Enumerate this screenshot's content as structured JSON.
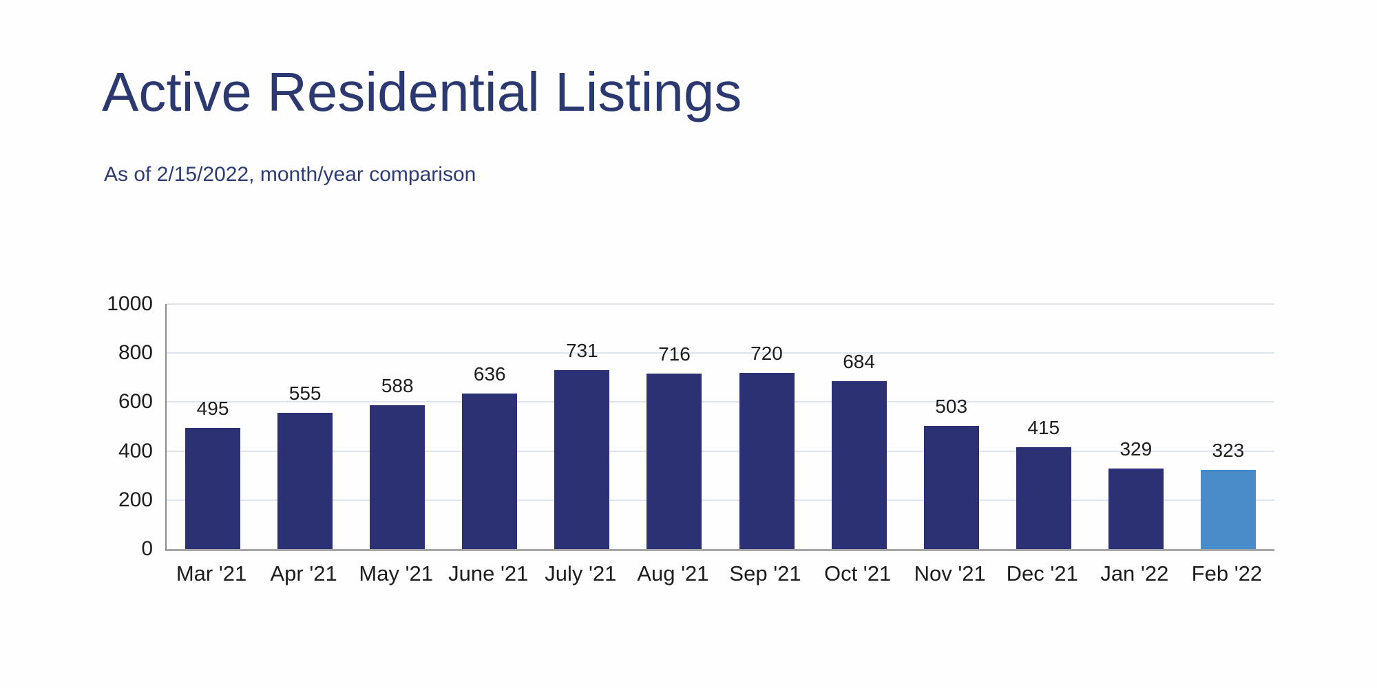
{
  "header": {
    "title": "Active Residential Listings",
    "subtitle": "As of 2/15/2022, month/year comparison"
  },
  "chart_data": {
    "type": "bar",
    "title": "Active Residential Listings",
    "subtitle": "As of 2/15/2022, month/year comparison",
    "categories": [
      "Mar '21",
      "Apr '21",
      "May '21",
      "June '21",
      "July '21",
      "Aug '21",
      "Sep '21",
      "Oct '21",
      "Nov '21",
      "Dec '21",
      "Jan '22",
      "Feb '22"
    ],
    "values": [
      495,
      555,
      588,
      636,
      731,
      716,
      720,
      684,
      503,
      415,
      329,
      323
    ],
    "data_labels_shown": true,
    "highlight_index": 11,
    "yticks": [
      0,
      200,
      400,
      600,
      800,
      1000
    ],
    "ylim": [
      0,
      1000
    ],
    "xlabel": "",
    "ylabel": "",
    "grid": true,
    "legend": false,
    "colors": {
      "bar": "#2b3173",
      "highlight_bar": "#4a8cc9",
      "title_text": "#2c3970",
      "subtitle_text": "#2d3c74",
      "label_text": "#1d1d1d",
      "gridline": "#dfe5ef",
      "baseline": "#a6a6a6",
      "axis_line": "#8c8c8c"
    }
  }
}
